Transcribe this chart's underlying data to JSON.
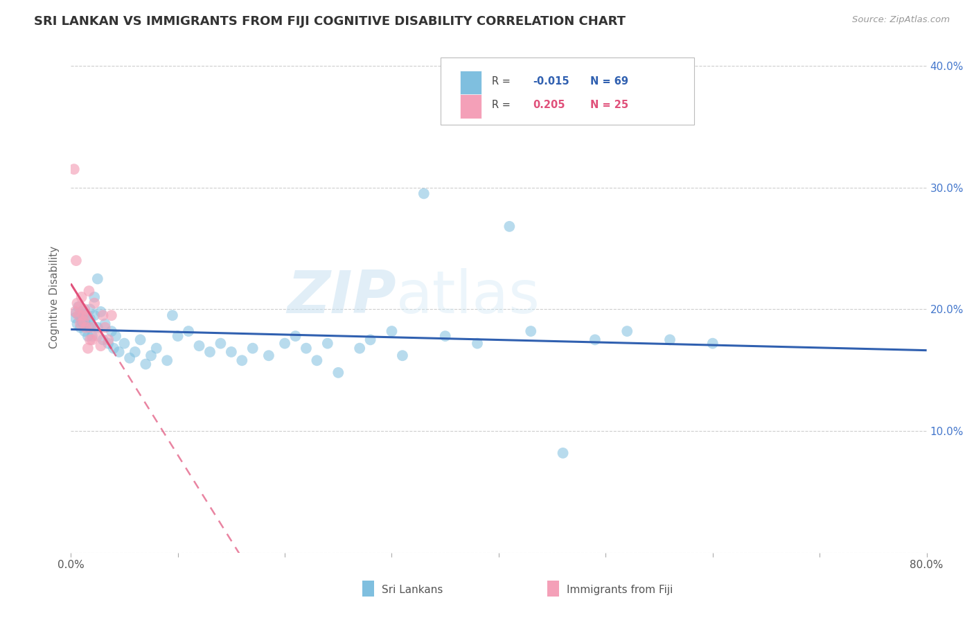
{
  "title": "SRI LANKAN VS IMMIGRANTS FROM FIJI COGNITIVE DISABILITY CORRELATION CHART",
  "source": "Source: ZipAtlas.com",
  "ylabel": "Cognitive Disability",
  "xmin": 0.0,
  "xmax": 0.8,
  "ymin": 0.0,
  "ymax": 0.42,
  "x_ticks": [
    0.0,
    0.1,
    0.2,
    0.3,
    0.4,
    0.5,
    0.6,
    0.7,
    0.8
  ],
  "x_tick_labels": [
    "0.0%",
    "",
    "",
    "",
    "",
    "",
    "",
    "",
    "80.0%"
  ],
  "y_ticks": [
    0.0,
    0.1,
    0.2,
    0.3,
    0.4
  ],
  "y_tick_labels": [
    "",
    "10.0%",
    "20.0%",
    "30.0%",
    "40.0%"
  ],
  "sri_lankans_color": "#7fbfdf",
  "fiji_color": "#f4a0b8",
  "sri_lankans_line_color": "#3060b0",
  "fiji_line_color": "#e0507a",
  "fiji_dash_color": "#e0a0b8",
  "background_color": "#ffffff",
  "grid_color": "#c8c8c8",
  "sri_lankans_x": [
    0.004,
    0.005,
    0.006,
    0.007,
    0.008,
    0.009,
    0.01,
    0.01,
    0.011,
    0.012,
    0.013,
    0.014,
    0.015,
    0.016,
    0.017,
    0.018,
    0.018,
    0.019,
    0.02,
    0.022,
    0.022,
    0.025,
    0.025,
    0.028,
    0.03,
    0.032,
    0.035,
    0.038,
    0.04,
    0.042,
    0.045,
    0.05,
    0.055,
    0.06,
    0.065,
    0.07,
    0.075,
    0.08,
    0.09,
    0.095,
    0.1,
    0.11,
    0.12,
    0.13,
    0.14,
    0.15,
    0.16,
    0.17,
    0.185,
    0.2,
    0.21,
    0.22,
    0.23,
    0.24,
    0.25,
    0.27,
    0.28,
    0.3,
    0.31,
    0.33,
    0.35,
    0.38,
    0.41,
    0.43,
    0.46,
    0.49,
    0.52,
    0.56,
    0.6
  ],
  "sri_lankans_y": [
    0.193,
    0.197,
    0.188,
    0.202,
    0.195,
    0.185,
    0.19,
    0.198,
    0.192,
    0.196,
    0.182,
    0.188,
    0.195,
    0.178,
    0.185,
    0.192,
    0.2,
    0.187,
    0.178,
    0.195,
    0.21,
    0.185,
    0.225,
    0.198,
    0.175,
    0.188,
    0.172,
    0.182,
    0.168,
    0.178,
    0.165,
    0.172,
    0.16,
    0.165,
    0.175,
    0.155,
    0.162,
    0.168,
    0.158,
    0.195,
    0.178,
    0.182,
    0.17,
    0.165,
    0.172,
    0.165,
    0.158,
    0.168,
    0.162,
    0.172,
    0.178,
    0.168,
    0.158,
    0.172,
    0.148,
    0.168,
    0.175,
    0.182,
    0.162,
    0.295,
    0.178,
    0.172,
    0.268,
    0.182,
    0.082,
    0.175,
    0.182,
    0.175,
    0.172
  ],
  "fiji_x": [
    0.003,
    0.004,
    0.005,
    0.006,
    0.007,
    0.008,
    0.009,
    0.01,
    0.011,
    0.012,
    0.013,
    0.014,
    0.015,
    0.016,
    0.017,
    0.018,
    0.019,
    0.02,
    0.022,
    0.025,
    0.028,
    0.03,
    0.032,
    0.035,
    0.038
  ],
  "fiji_y": [
    0.315,
    0.198,
    0.24,
    0.205,
    0.195,
    0.202,
    0.188,
    0.21,
    0.195,
    0.19,
    0.2,
    0.185,
    0.195,
    0.168,
    0.215,
    0.175,
    0.185,
    0.175,
    0.205,
    0.178,
    0.17,
    0.195,
    0.185,
    0.175,
    0.195
  ]
}
